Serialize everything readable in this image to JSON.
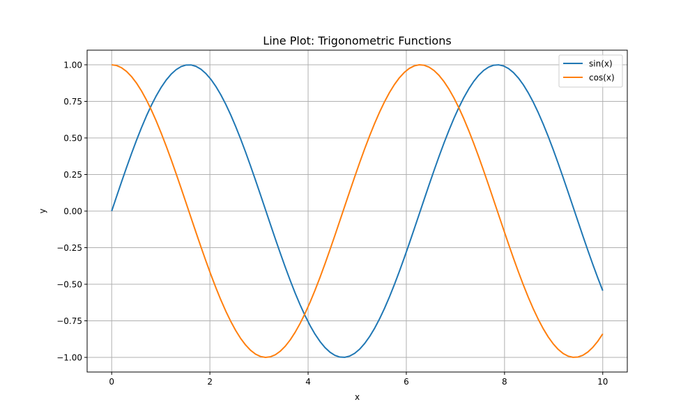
{
  "chart_data": {
    "type": "line",
    "title": "Line Plot: Trigonometric Functions",
    "xlabel": "x",
    "ylabel": "y",
    "xlim": [
      -0.5,
      10.5
    ],
    "ylim": [
      -1.1,
      1.1
    ],
    "x_range": [
      0,
      10
    ],
    "samples": 100,
    "xticks": [
      0,
      2,
      4,
      6,
      8,
      10
    ],
    "xtick_labels": [
      "0",
      "2",
      "4",
      "6",
      "8",
      "10"
    ],
    "yticks": [
      -1.0,
      -0.75,
      -0.5,
      -0.25,
      0.0,
      0.25,
      0.5,
      0.75,
      1.0
    ],
    "ytick_labels": [
      "−1.00",
      "−0.75",
      "−0.50",
      "−0.25",
      "0.00",
      "0.25",
      "0.50",
      "0.75",
      "1.00"
    ],
    "grid": true,
    "legend_position": "top-right",
    "series": [
      {
        "name": "sin(x)",
        "function": "sin(x)",
        "color": "#1f77b4"
      },
      {
        "name": "cos(x)",
        "function": "cos(x)",
        "color": "#ff7f0e"
      }
    ]
  }
}
